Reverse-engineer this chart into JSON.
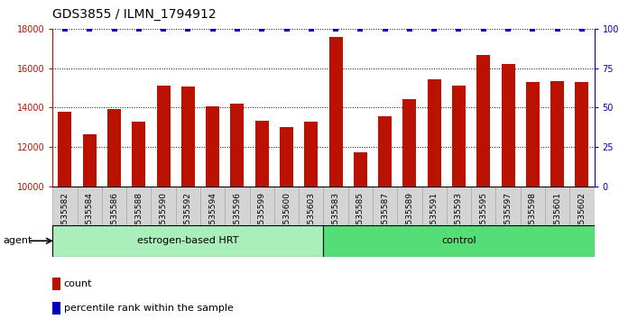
{
  "title": "GDS3855 / ILMN_1794912",
  "categories": [
    "GSM535582",
    "GSM535584",
    "GSM535586",
    "GSM535588",
    "GSM535590",
    "GSM535592",
    "GSM535594",
    "GSM535596",
    "GSM535599",
    "GSM535600",
    "GSM535603",
    "GSM535583",
    "GSM535585",
    "GSM535587",
    "GSM535589",
    "GSM535591",
    "GSM535593",
    "GSM535595",
    "GSM535597",
    "GSM535598",
    "GSM535601",
    "GSM535602"
  ],
  "bar_values": [
    13800,
    12650,
    13950,
    13300,
    15100,
    15050,
    14050,
    14200,
    13350,
    13000,
    13300,
    17600,
    11750,
    13550,
    14450,
    15450,
    15100,
    16650,
    16200,
    15300,
    15350,
    15300
  ],
  "ylim_left": [
    10000,
    18000
  ],
  "ylim_right": [
    0,
    100
  ],
  "yticks_left": [
    10000,
    12000,
    14000,
    16000,
    18000
  ],
  "yticks_right": [
    0,
    25,
    50,
    75,
    100
  ],
  "bar_color": "#bb1100",
  "percentile_color": "#0000bb",
  "group1_label": "estrogen-based HRT",
  "group1_count": 11,
  "group2_label": "control",
  "group2_count": 11,
  "group1_color": "#aaeebb",
  "group2_color": "#55dd77",
  "agent_label": "agent",
  "legend_count_label": "count",
  "legend_percentile_label": "percentile rank within the sample",
  "background_color": "#ffffff",
  "xtick_bg": "#d4d4d4",
  "title_fontsize": 10,
  "tick_fontsize": 7,
  "bar_width": 0.55
}
